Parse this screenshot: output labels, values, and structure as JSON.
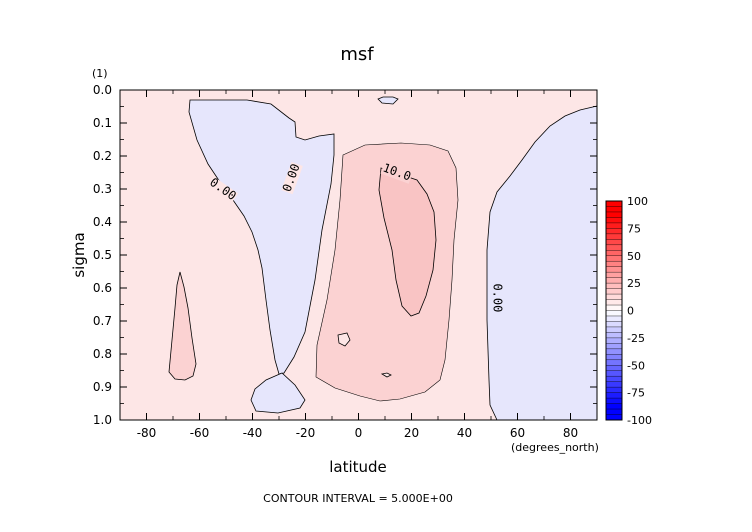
{
  "chart_data": {
    "type": "heatmap",
    "title": "msf",
    "xlabel": "latitude",
    "x_units": "(degrees_north)",
    "ylabel": "sigma",
    "y_units": "(1)",
    "xlim": [
      -90,
      90
    ],
    "ylim": [
      1.0,
      0.0
    ],
    "y_inverted": true,
    "x_ticks": [
      -80,
      -60,
      -40,
      -20,
      0,
      20,
      40,
      60,
      80
    ],
    "y_ticks": [
      "0.0",
      "0.1",
      "0.2",
      "0.3",
      "0.4",
      "0.5",
      "0.6",
      "0.7",
      "0.8",
      "0.9",
      "1.0"
    ],
    "contour_interval_text": "CONTOUR INTERVAL = 5.000E+00",
    "contour_labels": [
      {
        "text": "0.00",
        "lat": -52,
        "sigma": 0.31
      },
      {
        "text": "0.00",
        "lat": -24,
        "sigma": 0.27
      },
      {
        "text": "10.0",
        "lat": 14,
        "sigma": 0.26
      },
      {
        "text": "0.00",
        "lat": 51,
        "sigma": 0.63
      }
    ],
    "regions": [
      {
        "name": "background",
        "value": 2.5,
        "color": "#fde6e6"
      },
      {
        "name": "southern_negative_cell",
        "value": -2.5,
        "color": "#e6e6fc"
      },
      {
        "name": "small_negative_top",
        "value": -2.5,
        "color": "#e6e6fc"
      },
      {
        "name": "negative_blob_bottom",
        "value": -2.5,
        "color": "#e6e6fc"
      },
      {
        "name": "northern_negative_cell",
        "value": -2.5,
        "color": "#e6e6fc"
      },
      {
        "name": "central_positive_cell",
        "value": 7.5,
        "color": "#fbd2d2"
      },
      {
        "name": "core_above_10",
        "value": 12.5,
        "color": "#f9c4c4"
      },
      {
        "name": "small_positive_south",
        "value": 7.5,
        "color": "#fbd2d2"
      }
    ],
    "colorbar": {
      "labels": [
        "100",
        "75",
        "50",
        "25",
        "0",
        "-25",
        "-50",
        "-75",
        "-100"
      ],
      "max_color": "#ff0000",
      "zero_color": "#ffffff",
      "min_color": "#0000ff"
    }
  }
}
